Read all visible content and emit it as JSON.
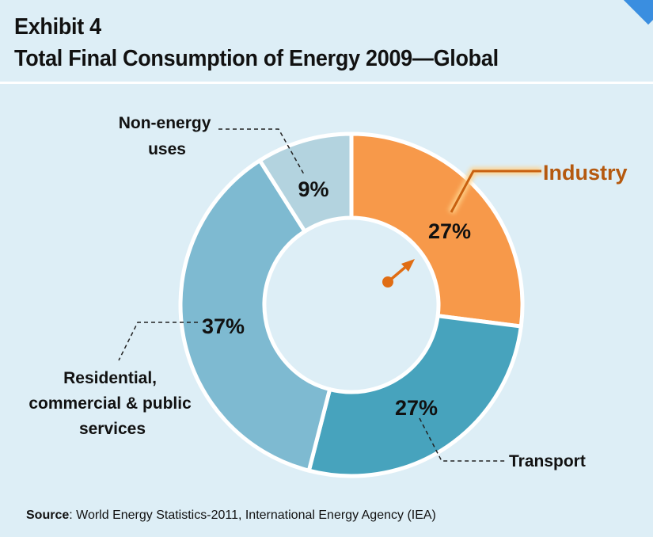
{
  "header": {
    "exhibit": "Exhibit 4",
    "title": "Total Final Consumption of Energy 2009—Global"
  },
  "source": {
    "label": "Source",
    "text": ": World Energy Statistics-2011, International Energy Agency (IEA)"
  },
  "chart_data": {
    "type": "pie",
    "donut": true,
    "slices": [
      {
        "label": "Industry",
        "value": 27,
        "display": "27%",
        "color": "#f7994a",
        "highlighted": true
      },
      {
        "label": "Transport",
        "value": 27,
        "display": "27%",
        "color": "#47a3bd"
      },
      {
        "label": "Residential, commercial & public services",
        "display_lines": [
          "Residential,",
          "commercial & public",
          "services"
        ],
        "value": 37,
        "display": "37%",
        "color": "#7ebad1"
      },
      {
        "label": "Non-energy uses",
        "display_lines": [
          "Non-energy",
          "uses"
        ],
        "value": 9,
        "display": "9%",
        "color": "#b3d3df"
      }
    ],
    "highlight_color": "#b5590f"
  }
}
